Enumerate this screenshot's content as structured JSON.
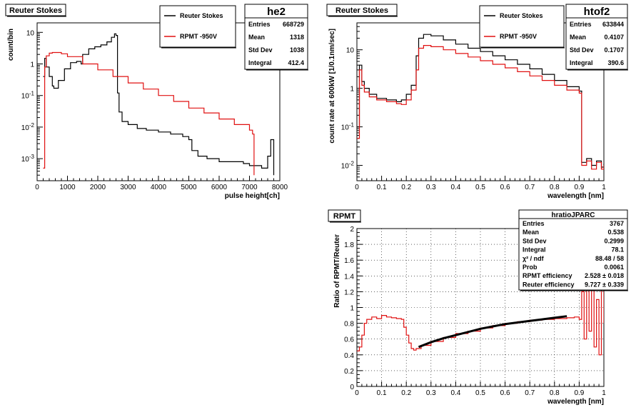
{
  "colors": {
    "reuter": "#000000",
    "rpmt": "#e01010",
    "fit": "#000000",
    "grid": "#000000"
  },
  "chart_data": [
    {
      "type": "line",
      "title": "Reuter Stokes",
      "xlabel": "pulse height[ch]",
      "ylabel": "count/bin",
      "xlim": [
        0,
        8000
      ],
      "ylim": [
        0.0002,
        20
      ],
      "yscale": "log",
      "x_ticks": [
        0,
        1000,
        2000,
        3000,
        4000,
        5000,
        6000,
        7000,
        8000
      ],
      "x_tick_labels": [
        "0",
        "1000",
        "2000",
        "3000",
        "4000",
        "5000",
        "6000",
        "7000",
        "8000"
      ],
      "y_ticks": [
        0.001,
        0.01,
        0.1,
        1,
        10
      ],
      "y_tick_labels": [
        "10-3",
        "10-2",
        "10-1",
        "1",
        "10"
      ],
      "legend": {
        "placement": "top-right",
        "entries": [
          {
            "label": "Reuter Stokes",
            "color": "#000000"
          },
          {
            "label": "RPMT -950V",
            "color": "#e01010"
          }
        ]
      },
      "stats": {
        "name": "he2",
        "rows": [
          {
            "label": "Entries",
            "value": "668729"
          },
          {
            "label": "Mean",
            "value": "1318"
          },
          {
            "label": "Std Dev",
            "value": "1038"
          },
          {
            "label": "Integral",
            "value": "412.4"
          }
        ]
      },
      "series": [
        {
          "name": "Reuter Stokes",
          "color": "#000000",
          "step": true,
          "x": [
            200,
            250,
            300,
            400,
            500,
            550,
            700,
            900,
            1100,
            1300,
            1450,
            1500,
            1700,
            1900,
            2100,
            2300,
            2450,
            2550,
            2600,
            2650,
            2700,
            2800,
            3000,
            3300,
            3600,
            4000,
            4400,
            4800,
            5000,
            5100,
            5300,
            5600,
            6000,
            6400,
            6800,
            7000,
            7200,
            7400,
            7600,
            7700,
            7800
          ],
          "y": [
            0.4,
            1.5,
            0.8,
            0.4,
            0.2,
            0.17,
            0.3,
            0.7,
            1.1,
            1.2,
            1.0,
            2.0,
            3.0,
            3.5,
            4.0,
            5.0,
            7.0,
            9.0,
            8.0,
            0.12,
            0.03,
            0.015,
            0.012,
            0.009,
            0.008,
            0.007,
            0.006,
            0.005,
            0.004,
            0.0018,
            0.0012,
            0.001,
            0.0008,
            0.0008,
            0.0007,
            0.0006,
            0.0006,
            0.0005,
            0.0012,
            0.004,
            0.0003
          ]
        },
        {
          "name": "RPMT -950V",
          "color": "#e01010",
          "step": true,
          "x": [
            200,
            250,
            300,
            400,
            500,
            600,
            800,
            1000,
            1500,
            2000,
            2500,
            3000,
            3500,
            4000,
            4500,
            5000,
            5500,
            6000,
            6500,
            7000,
            7100,
            7150
          ],
          "y": [
            0.0005,
            0.8,
            1.8,
            2.2,
            2.3,
            2.3,
            2.1,
            1.7,
            1.0,
            0.65,
            0.4,
            0.25,
            0.16,
            0.1,
            0.065,
            0.04,
            0.028,
            0.018,
            0.012,
            0.008,
            0.006,
            0.0003
          ]
        }
      ]
    },
    {
      "type": "line",
      "title": "Reuter Stokes",
      "xlabel": "wavelength [nm]",
      "ylabel": "count rate at 600kW [1/0.1nm/sec]",
      "xlim": [
        0,
        1
      ],
      "ylim": [
        0.004,
        50
      ],
      "yscale": "log",
      "x_ticks": [
        0,
        0.1,
        0.2,
        0.3,
        0.4,
        0.5,
        0.6,
        0.7,
        0.8,
        0.9,
        1
      ],
      "x_tick_labels": [
        "0",
        "0.1",
        "0.2",
        "0.3",
        "0.4",
        "0.5",
        "0.6",
        "0.7",
        "0.8",
        "0.9",
        "1"
      ],
      "y_ticks": [
        0.01,
        0.1,
        1,
        10
      ],
      "y_tick_labels": [
        "10-2",
        "10-1",
        "1",
        "10"
      ],
      "legend": {
        "placement": "top-right",
        "entries": [
          {
            "label": "Reuter Stokes",
            "color": "#000000"
          },
          {
            "label": "RPMT -950V",
            "color": "#e01010"
          }
        ]
      },
      "stats": {
        "name": "htof2",
        "rows": [
          {
            "label": "Entries",
            "value": "633844"
          },
          {
            "label": "Mean",
            "value": "0.4107"
          },
          {
            "label": "Std Dev",
            "value": "0.1707"
          },
          {
            "label": "Integral",
            "value": "390.6"
          }
        ]
      },
      "series": [
        {
          "name": "Reuter Stokes",
          "color": "#000000",
          "step": true,
          "x": [
            0.0,
            0.01,
            0.02,
            0.03,
            0.05,
            0.08,
            0.12,
            0.16,
            0.18,
            0.2,
            0.22,
            0.24,
            0.25,
            0.27,
            0.3,
            0.35,
            0.4,
            0.45,
            0.5,
            0.55,
            0.6,
            0.65,
            0.7,
            0.75,
            0.8,
            0.85,
            0.9,
            0.91,
            0.93,
            0.95,
            0.97,
            0.99,
            1.0
          ],
          "y": [
            0.1,
            4.0,
            1.5,
            1.0,
            0.7,
            0.55,
            0.5,
            0.45,
            0.5,
            0.7,
            1.2,
            7.0,
            20.0,
            25.0,
            23.0,
            18.0,
            14.0,
            11.0,
            9.0,
            7.0,
            5.5,
            4.2,
            3.2,
            2.3,
            1.6,
            1.1,
            0.85,
            0.012,
            0.015,
            0.01,
            0.013,
            0.009,
            0.011
          ]
        },
        {
          "name": "RPMT -950V",
          "color": "#e01010",
          "step": true,
          "x": [
            0.0,
            0.01,
            0.02,
            0.03,
            0.05,
            0.08,
            0.12,
            0.16,
            0.18,
            0.2,
            0.22,
            0.24,
            0.25,
            0.27,
            0.3,
            0.35,
            0.4,
            0.45,
            0.5,
            0.55,
            0.6,
            0.65,
            0.7,
            0.75,
            0.8,
            0.85,
            0.9,
            0.91,
            0.93,
            0.95,
            0.97,
            0.99,
            1.0
          ],
          "y": [
            0.05,
            3.0,
            1.2,
            0.8,
            0.6,
            0.5,
            0.45,
            0.4,
            0.38,
            0.5,
            0.9,
            3.0,
            11.0,
            13.0,
            12.0,
            10.0,
            8.0,
            6.5,
            5.2,
            4.2,
            3.4,
            2.7,
            2.1,
            1.6,
            1.2,
            0.9,
            0.75,
            0.01,
            0.013,
            0.008,
            0.012,
            0.008,
            0.01
          ]
        }
      ]
    },
    {
      "type": "line",
      "title": "RPMT",
      "xlabel": "wavelength [nm]",
      "ylabel": "Ratio of RPMT/Reuter",
      "xlim": [
        0,
        1
      ],
      "ylim": [
        0,
        2
      ],
      "grid": true,
      "x_ticks": [
        0,
        0.1,
        0.2,
        0.3,
        0.4,
        0.5,
        0.6,
        0.7,
        0.8,
        0.9,
        1
      ],
      "x_tick_labels": [
        "0",
        "0.1",
        "0.2",
        "0.3",
        "0.4",
        "0.5",
        "0.6",
        "0.7",
        "0.8",
        "0.9",
        "1"
      ],
      "y_ticks": [
        0,
        0.2,
        0.4,
        0.6,
        0.8,
        1,
        1.2,
        1.4,
        1.6,
        1.8,
        2
      ],
      "y_tick_labels": [
        "0",
        "0.2",
        "0.4",
        "0.6",
        "0.8",
        "1",
        "1.2",
        "1.4",
        "1.6",
        "1.8",
        "2"
      ],
      "stats": {
        "name": "hratioJPARC",
        "rows": [
          {
            "label": "Entries",
            "value": "3767"
          },
          {
            "label": "Mean",
            "value": "0.538"
          },
          {
            "label": "Std Dev",
            "value": "0.2999"
          },
          {
            "label": "Integral",
            "value": "78.1"
          },
          {
            "label": "χ² / ndf",
            "value": "88.48 / 58"
          },
          {
            "label": "Prob",
            "value": "0.0061"
          },
          {
            "label": "RPMT efficiency",
            "value": "2.528 ± 0.018"
          },
          {
            "label": "Reuter efficiency",
            "value": "9.727 ± 0.339"
          }
        ]
      },
      "series": [
        {
          "name": "hratioJPARC",
          "color": "#e01010",
          "step": true,
          "x": [
            0.0,
            0.01,
            0.02,
            0.03,
            0.04,
            0.06,
            0.08,
            0.1,
            0.12,
            0.14,
            0.16,
            0.18,
            0.19,
            0.2,
            0.21,
            0.22,
            0.23,
            0.24,
            0.26,
            0.3,
            0.35,
            0.4,
            0.45,
            0.5,
            0.55,
            0.6,
            0.65,
            0.7,
            0.75,
            0.8,
            0.85,
            0.88,
            0.9,
            0.91,
            0.92,
            0.93,
            0.94,
            0.95,
            0.96,
            0.97,
            0.98,
            0.99,
            1.0
          ],
          "y": [
            0.45,
            0.5,
            0.65,
            0.8,
            0.85,
            0.88,
            0.86,
            0.9,
            0.88,
            0.87,
            0.86,
            0.85,
            0.75,
            0.65,
            0.55,
            0.48,
            0.46,
            0.48,
            0.52,
            0.57,
            0.62,
            0.67,
            0.7,
            0.74,
            0.77,
            0.8,
            0.82,
            0.84,
            0.85,
            0.86,
            0.87,
            0.88,
            0.85,
            1.2,
            0.6,
            1.4,
            0.7,
            1.3,
            0.5,
            1.1,
            0.4,
            1.5,
            0.8
          ]
        },
        {
          "name": "fit",
          "color": "#000000",
          "step": false,
          "x": [
            0.25,
            0.3,
            0.35,
            0.4,
            0.45,
            0.5,
            0.55,
            0.6,
            0.65,
            0.7,
            0.75,
            0.8,
            0.85
          ],
          "y": [
            0.5,
            0.56,
            0.61,
            0.65,
            0.69,
            0.73,
            0.76,
            0.79,
            0.81,
            0.83,
            0.85,
            0.87,
            0.89
          ]
        }
      ]
    }
  ]
}
